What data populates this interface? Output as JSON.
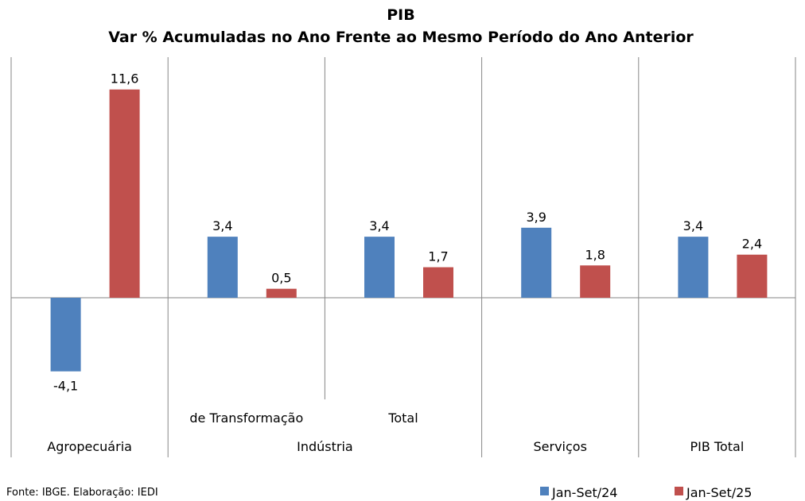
{
  "chart_data": {
    "type": "bar",
    "title": "PIB",
    "subtitle": "Var % Acumuladas no Ano Frente ao Mesmo Período do Ano Anterior",
    "categories": [
      "Agropecuária",
      "de Transformação",
      "Total",
      "Serviços",
      "PIB Total"
    ],
    "groups": [
      {
        "label": "Agropecuária",
        "members": [
          "Agropecuária"
        ]
      },
      {
        "label": "Indústria",
        "members": [
          "de Transformação",
          "Total"
        ]
      },
      {
        "label": "Serviços",
        "members": [
          "Serviços"
        ]
      },
      {
        "label": "PIB Total",
        "members": [
          "PIB Total"
        ]
      }
    ],
    "series": [
      {
        "name": "Jan-Set/24",
        "color": "#4f81bd",
        "values": [
          -4.1,
          3.4,
          3.4,
          3.9,
          3.4
        ],
        "labels": [
          "-4,1",
          "3,4",
          "3,4",
          "3,9",
          "3,4"
        ]
      },
      {
        "name": "Jan-Set/25",
        "color": "#c0504d",
        "values": [
          11.6,
          0.5,
          1.7,
          1.8,
          2.4
        ],
        "labels": [
          "11,6",
          "0,5",
          "1,7",
          "1,8",
          "2,4"
        ]
      }
    ],
    "ylim": [
      -5.3,
      13.4
    ],
    "grid": false,
    "legend": "bottom-right"
  },
  "footer": {
    "source": "Fonte: IBGE. Elaboração: IEDI"
  }
}
